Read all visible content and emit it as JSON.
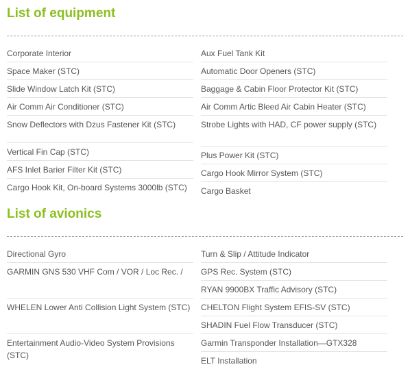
{
  "equipment": {
    "title": "List of equipment",
    "left": [
      "Corporate Interior",
      "Space Maker (STC)",
      "Slide Window Latch Kit (STC)",
      "Air Comm Air Conditioner (STC)",
      "Snow Deflectors with Dzus Fastener Kit (STC)",
      "Vertical Fin Cap (STC)",
      "AFS Inlet Barier Filter Kit (STC)",
      "Cargo Hook Kit, On-board Systems 3000lb (STC)"
    ],
    "right": [
      "Aux Fuel Tank Kit",
      "Automatic Door Openers (STC)",
      "Baggage & Cabin Floor Protector Kit (STC)",
      "Air Comm Artic Bleed Air Cabin Heater (STC)",
      "Strobe Lights with HAD, CF power supply (STC)",
      "Plus Power Kit (STC)",
      "Cargo Hook Mirror System (STC)",
      "Cargo Basket"
    ]
  },
  "avionics": {
    "title": "List of avionics",
    "left": [
      "Directional Gyro",
      "GARMIN GNS 530 VHF Com / VOR / Loc Rec. /",
      "WHELEN Lower Anti Collision Light System (STC)",
      "Entertainment Audio-Video System Provisions (STC)"
    ],
    "right": [
      "Turn & Slip / Attitude Indicator",
      "GPS Rec. System (STC)",
      "RYAN 9900BX Traffic Advisory (STC)",
      "CHELTON Flight System EFIS-SV (STC)",
      "SHADIN Fuel Flow Transducer (STC)",
      "Garmin Transponder Installation—GTX328",
      "ELT Installation"
    ]
  }
}
